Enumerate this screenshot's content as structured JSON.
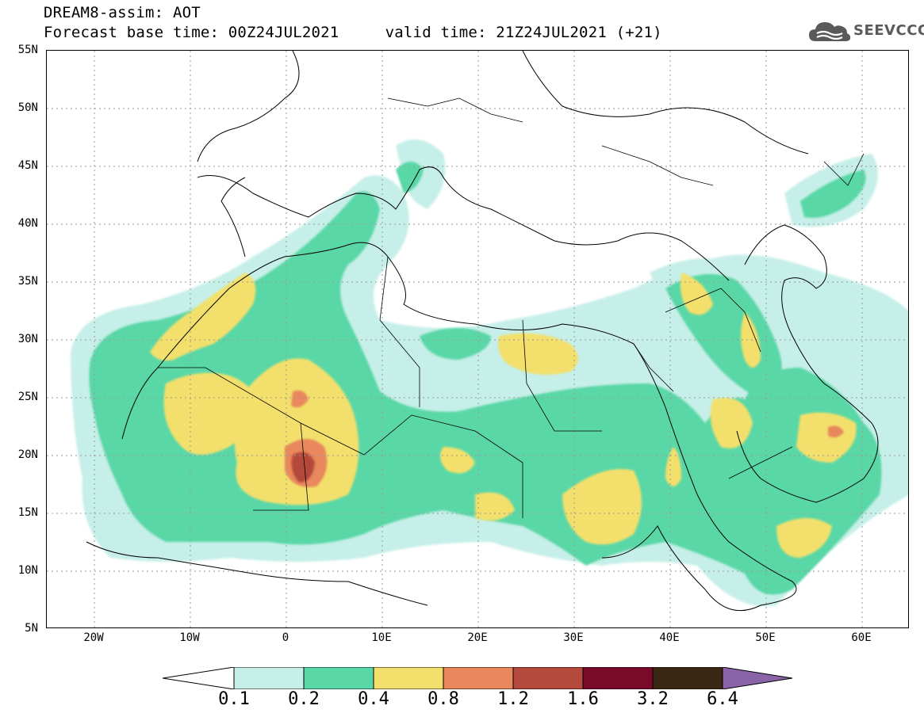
{
  "title": {
    "line1": "DREAM8-assim: AOT",
    "line2": "Forecast base time: 00Z24JUL2021     valid time: 21Z24JUL2021 (+21)"
  },
  "logo": {
    "text": "SEEVCCC",
    "icon": "cloud-icon",
    "color": "#5a5a5a"
  },
  "map": {
    "lon_range": [
      -25,
      65
    ],
    "lat_range": [
      5,
      55
    ],
    "lat_ticks": [
      "55N",
      "50N",
      "45N",
      "40N",
      "35N",
      "30N",
      "25N",
      "20N",
      "15N",
      "10N",
      "5N"
    ],
    "lon_ticks": [
      "20W",
      "10W",
      "0",
      "10E",
      "20E",
      "30E",
      "40E",
      "50E",
      "60E"
    ]
  },
  "colorbar": {
    "levels": [
      "0.1",
      "0.2",
      "0.4",
      "0.8",
      "1.2",
      "1.6",
      "3.2",
      "6.4"
    ],
    "colors": [
      "#c6efe9",
      "#5ad7a6",
      "#f3e06c",
      "#e8885c",
      "#b44a3b",
      "#7a0a2a",
      "#3b2614",
      "#8a64a8"
    ]
  }
}
